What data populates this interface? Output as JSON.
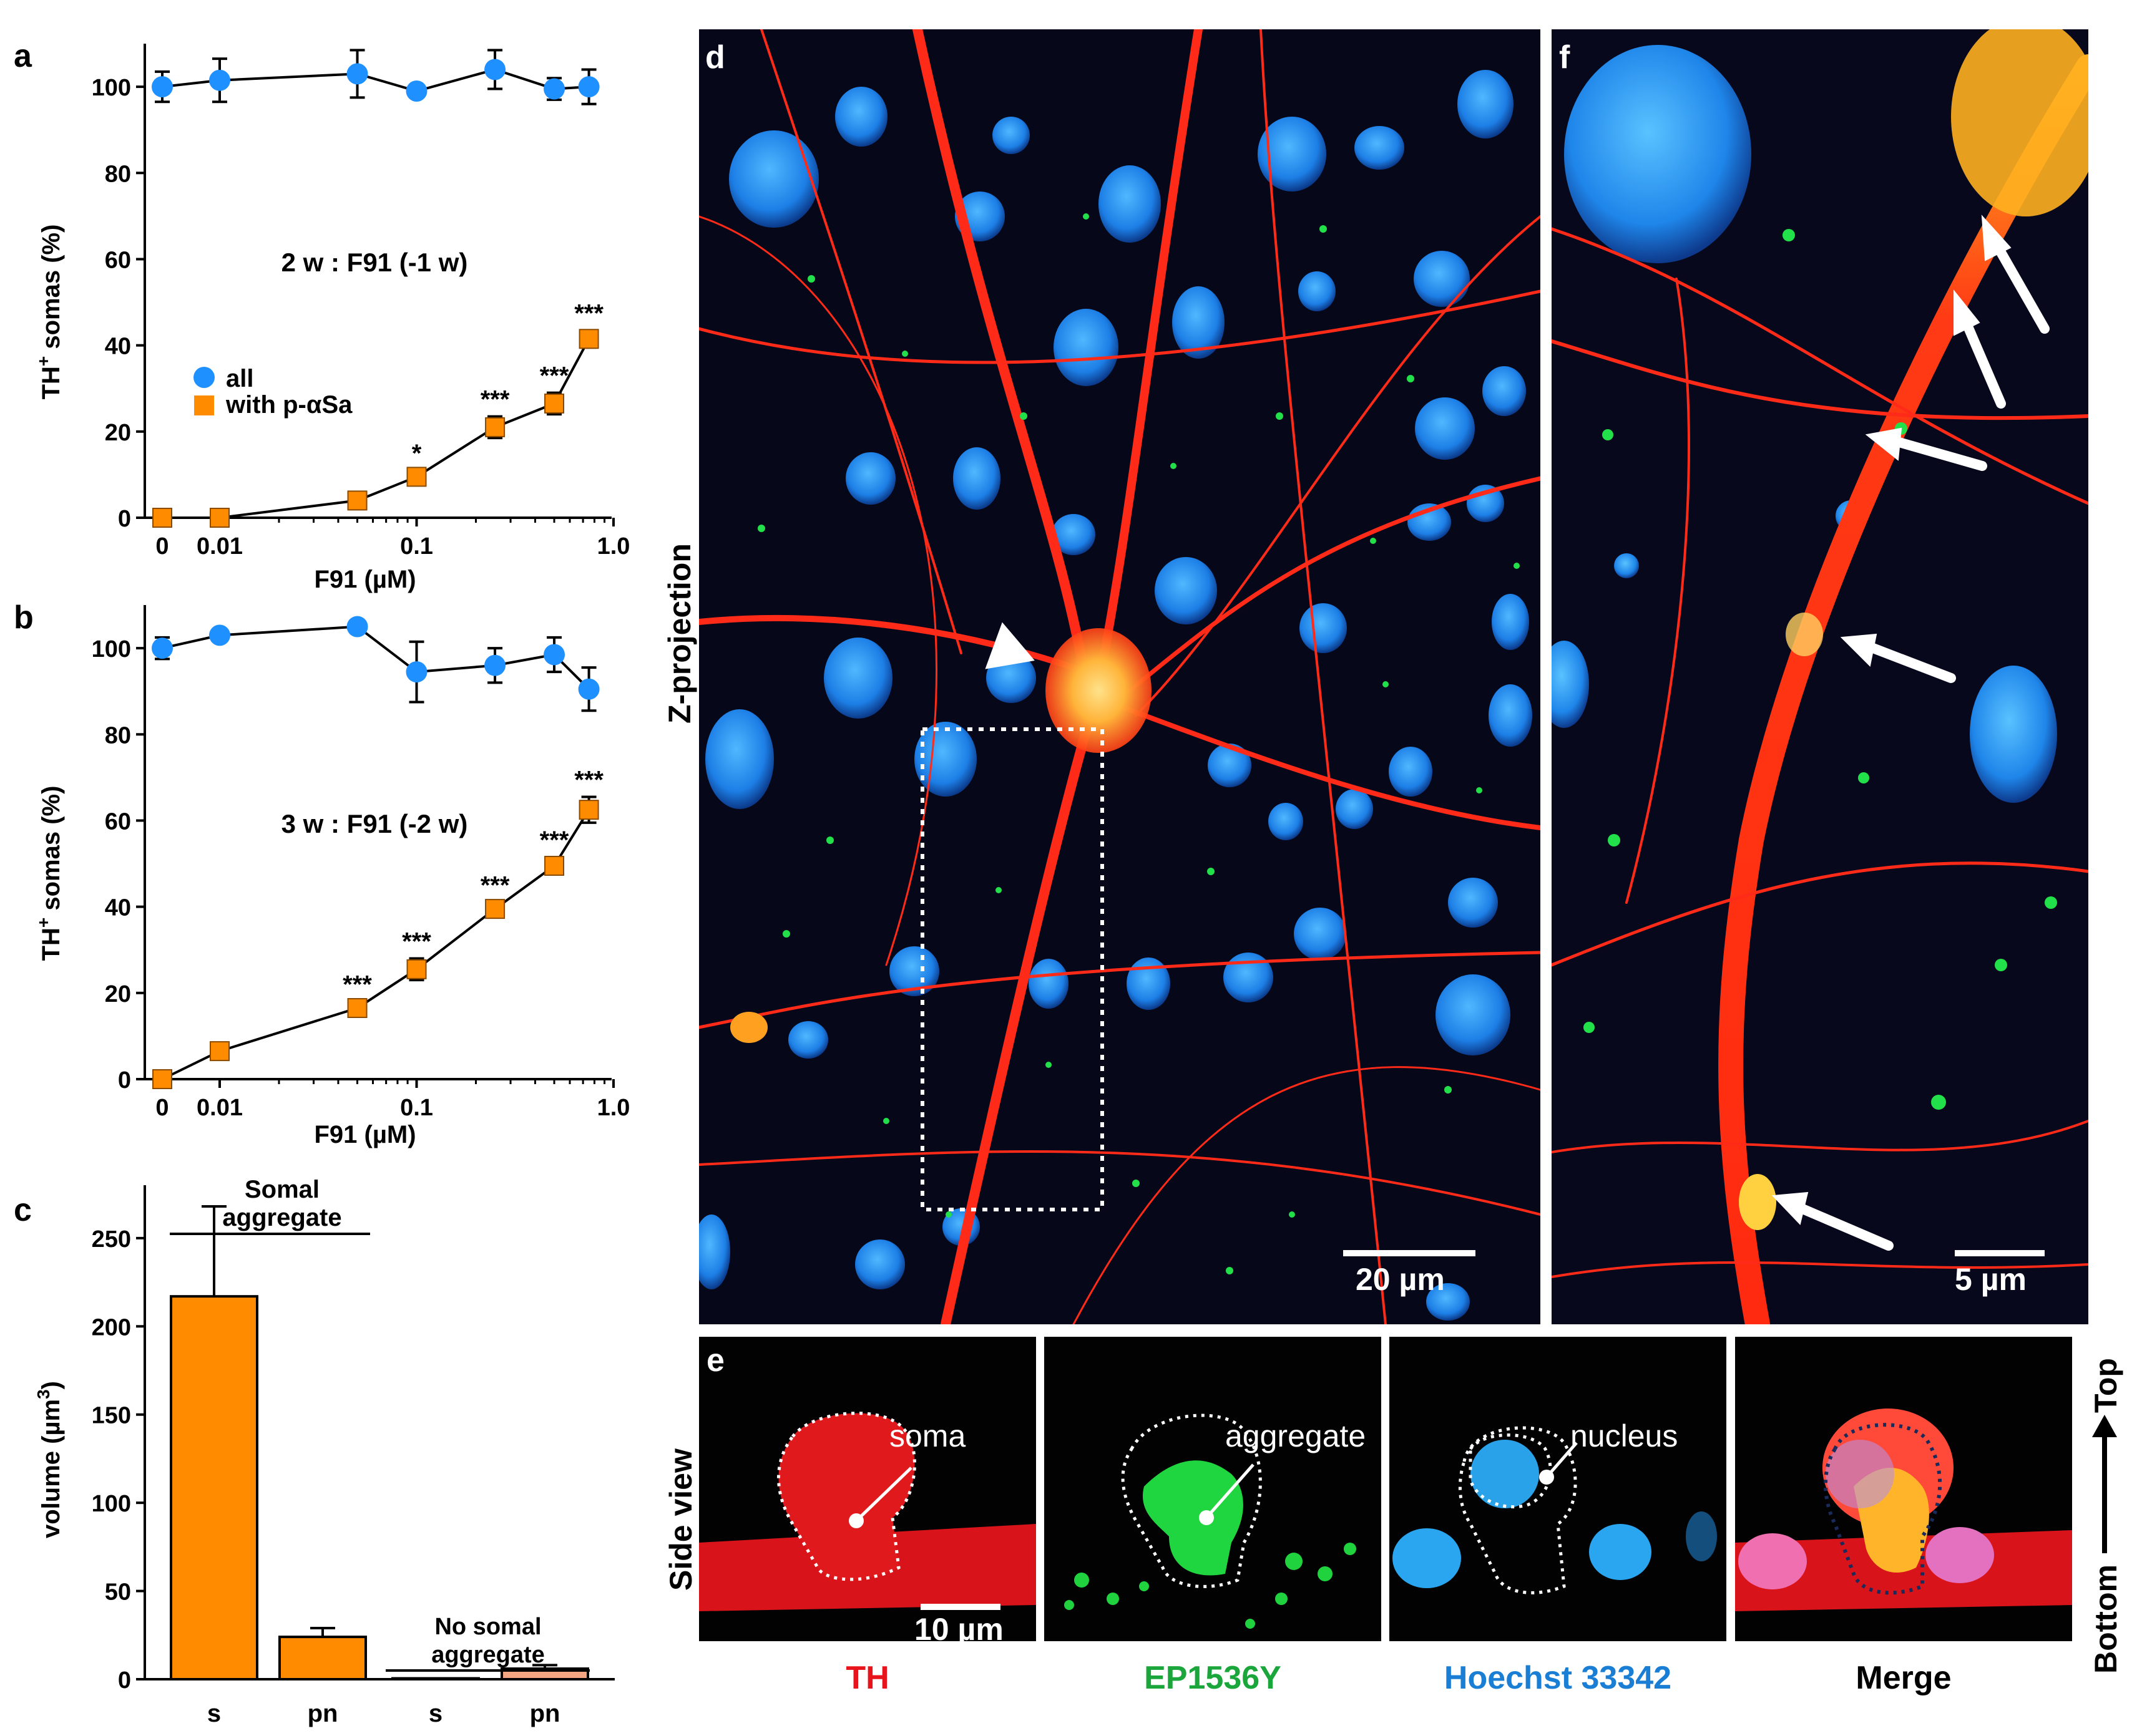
{
  "panel_a": {
    "letter": "a",
    "annotation": "2 w : F91 (-1 w)",
    "legend_all": "all",
    "legend_paS": "with p-αSa",
    "ylabel_main": "TH",
    "ylabel_sup": "+",
    "ylabel_rest": " somas (%)",
    "xlabel": "F91 (µM)",
    "xticks": [
      "0",
      "0.01",
      "0.1",
      "1.0"
    ],
    "yticks": [
      "0",
      "20",
      "40",
      "60",
      "80",
      "100"
    ],
    "colors": {
      "all": "#1e90ff",
      "paS": "#ff8c00"
    }
  },
  "panel_b": {
    "letter": "b",
    "annotation": "3 w : F91 (-2 w)",
    "ylabel_main": "TH",
    "ylabel_sup": "+",
    "ylabel_rest": " somas (%)",
    "xlabel": "F91 (µM)",
    "xticks": [
      "0",
      "0.01",
      "0.1",
      "1.0"
    ],
    "yticks": [
      "0",
      "20",
      "40",
      "60",
      "80",
      "100"
    ]
  },
  "panel_c": {
    "letter": "c",
    "ylabel_main": "volume (µm",
    "ylabel_sup": "3",
    "ylabel_rest": ")",
    "yticks": [
      "0",
      "50",
      "100",
      "150",
      "200",
      "250"
    ],
    "group1_label_line1": "Somal",
    "group1_label_line2": "aggregate",
    "group2_label_line1": "No somal",
    "group2_label_line2": "aggregate",
    "xcats": [
      "s",
      "pn",
      "s",
      "pn"
    ]
  },
  "chart_data": [
    {
      "type": "line",
      "x_scale": "log-with-zero",
      "x": [
        0,
        0.01,
        0.05,
        0.1,
        0.25,
        0.5,
        0.75
      ],
      "ylim": [
        0,
        110
      ],
      "series": [
        {
          "name": "all",
          "values": [
            100,
            101.5,
            103,
            99,
            104,
            99.5,
            100
          ],
          "errors": [
            3.5,
            5,
            5.5,
            1,
            4.5,
            2.5,
            4
          ]
        },
        {
          "name": "with p-αSa",
          "values": [
            0,
            0,
            4,
            9.5,
            21,
            26.5,
            41.5
          ],
          "errors": [
            0,
            0,
            2,
            1.5,
            2.5,
            2.5,
            2
          ]
        }
      ],
      "significance": [
        "",
        "",
        "",
        "*",
        "***",
        "***",
        "***"
      ]
    },
    {
      "type": "line",
      "x_scale": "log-with-zero",
      "x": [
        0,
        0.01,
        0.05,
        0.1,
        0.25,
        0.5,
        0.75
      ],
      "ylim": [
        0,
        110
      ],
      "series": [
        {
          "name": "all",
          "values": [
            100,
            103,
            105,
            94.5,
            96,
            98.5,
            90.5
          ],
          "errors": [
            2.5,
            1,
            1,
            7,
            4,
            4,
            5
          ]
        },
        {
          "name": "with p-αSa",
          "values": [
            0,
            6.5,
            16.5,
            25.5,
            39.5,
            49.5,
            62.5
          ],
          "errors": [
            0,
            1,
            1.5,
            2.5,
            1.5,
            2,
            3
          ]
        }
      ],
      "significance": [
        "",
        "",
        "***",
        "***",
        "***",
        "***",
        "***"
      ]
    },
    {
      "type": "bar",
      "categories": [
        "s",
        "pn",
        "s",
        "pn"
      ],
      "values": [
        217,
        24,
        0.5,
        6
      ],
      "errors": [
        51,
        5,
        0,
        2
      ],
      "ylim": [
        0,
        280
      ],
      "colors": [
        "#ff8c00",
        "#ff8c00",
        "#ff8c00",
        "#f4a582"
      ]
    }
  ],
  "panel_d": {
    "letter": "d",
    "side_label": "Z-projection",
    "scalebar": "20 µm"
  },
  "panel_f": {
    "letter": "f",
    "scalebar": "5 µm"
  },
  "panel_e": {
    "letter": "e",
    "side_label": "Side view",
    "label_soma": "soma",
    "label_aggregate": "aggregate",
    "label_nucleus": "nucleus",
    "scalebar": "10 µm",
    "caption_th": "TH",
    "caption_ep": "EP1536Y",
    "caption_hoechst": "Hoechst 33342",
    "caption_merge": "Merge",
    "axis_top": "Top",
    "axis_bottom": "Bottom",
    "caption_colors": {
      "th": "#e8141c",
      "ep": "#1aa63a",
      "hoechst": "#1a7fd4",
      "merge": "#000000"
    }
  }
}
